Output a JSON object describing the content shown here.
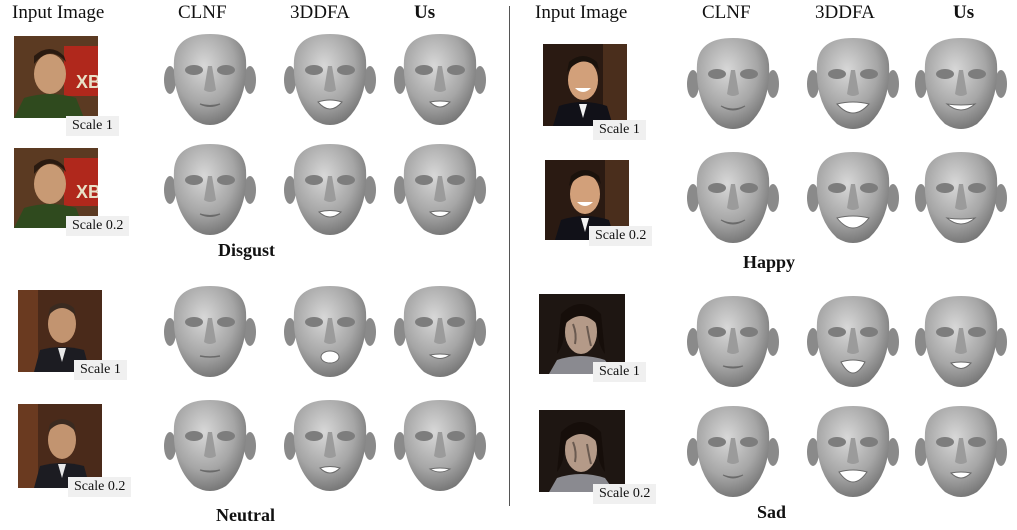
{
  "columns": {
    "input": "Input Image",
    "clnf": "CLNF",
    "ddfa": "3DDFA",
    "us": "Us"
  },
  "scales": {
    "s1": "Scale 1",
    "s02": "Scale 0.2"
  },
  "expressions": {
    "disgust": "Disgust",
    "neutral": "Neutral",
    "happy": "Happy",
    "sad": "Sad"
  }
}
